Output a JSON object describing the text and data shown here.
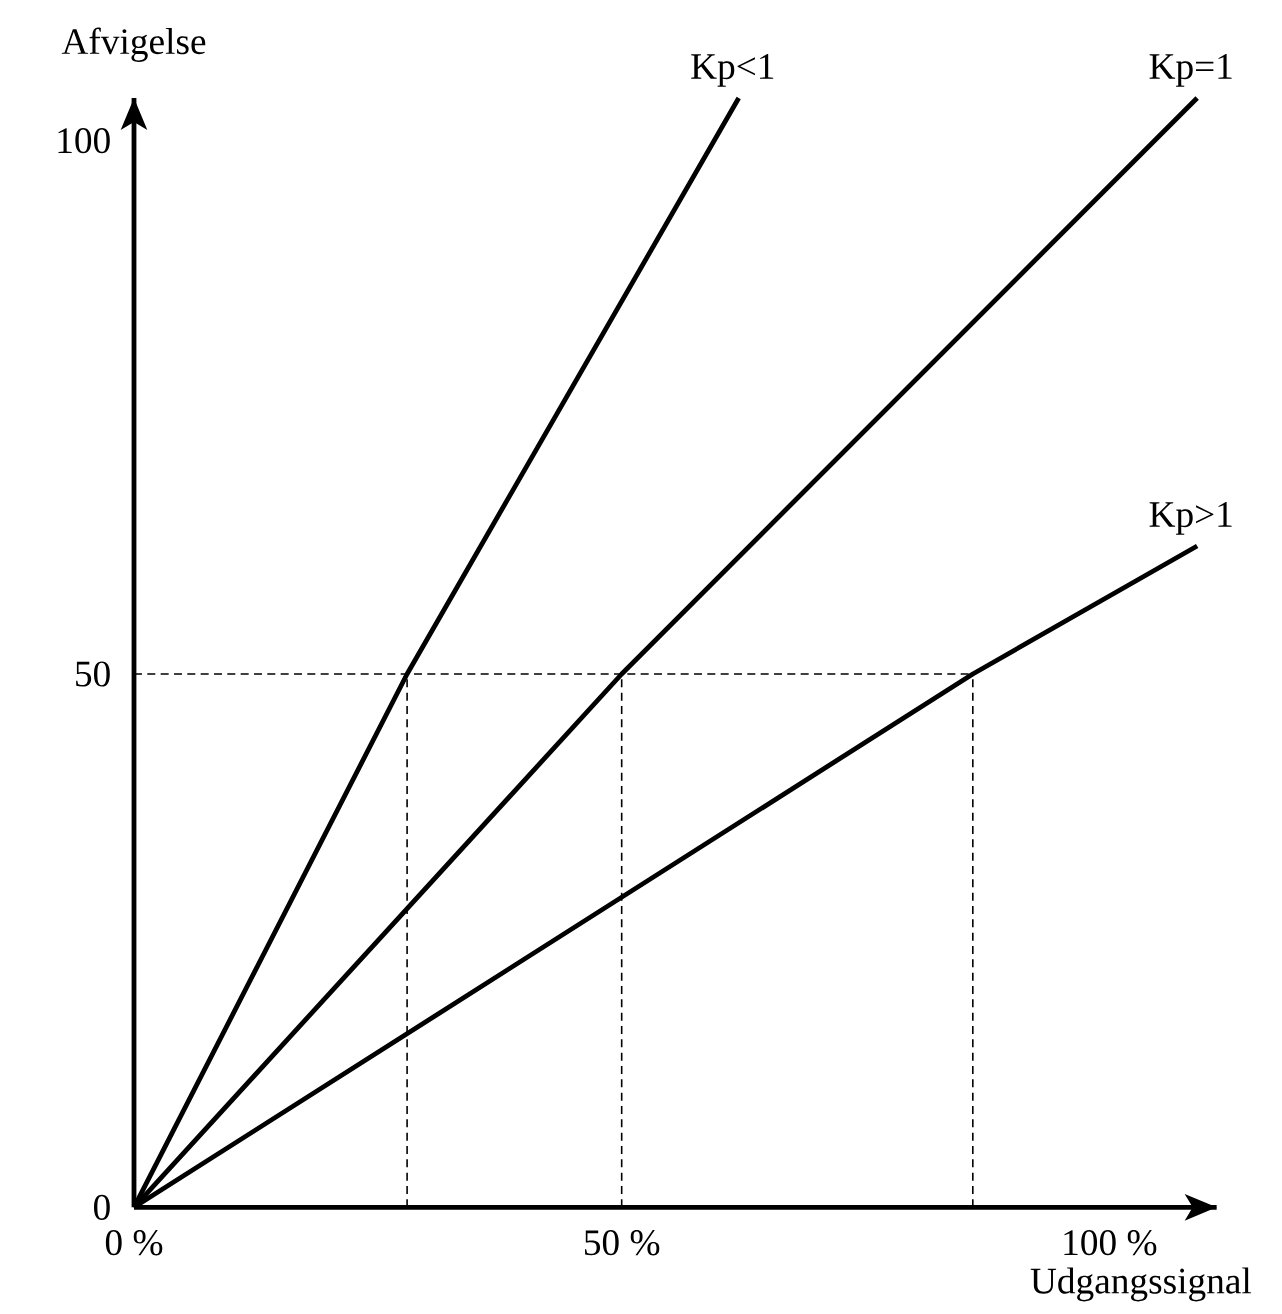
{
  "chart_data": {
    "type": "line",
    "xlabel": "Udgangssignal",
    "ylabel": "Afvigelse",
    "xlim": [
      0,
      111
    ],
    "ylim": [
      0,
      104
    ],
    "xticks": [
      {
        "value": 0,
        "label": "0 %"
      },
      {
        "value": 50,
        "label": "50 %"
      },
      {
        "value": 100,
        "label": "100 %"
      }
    ],
    "yticks": [
      0,
      50,
      100
    ],
    "series": [
      {
        "name": "Kp<1",
        "color": "#000000",
        "x": [
          0,
          28,
          62
        ],
        "values": [
          0,
          50,
          104
        ]
      },
      {
        "name": "Kp=1",
        "color": "#000000",
        "x": [
          0,
          50,
          109
        ],
        "values": [
          0,
          50,
          104
        ]
      },
      {
        "name": "Kp>1",
        "color": "#000000",
        "x": [
          0,
          86,
          109
        ],
        "values": [
          0,
          50,
          62
        ]
      },
      {
        "color": "#000000",
        "line_style": "dashed",
        "x": [
          0,
          86
        ],
        "values": [
          50,
          50
        ]
      },
      {
        "color": "#000000",
        "line_style": "dashed",
        "x": [
          28,
          28
        ],
        "values": [
          0,
          50
        ]
      },
      {
        "color": "#000000",
        "line_style": "dashed",
        "x": [
          50,
          50
        ],
        "values": [
          0,
          50
        ]
      },
      {
        "color": "#000000",
        "line_style": "dashed",
        "x": [
          86,
          86
        ],
        "values": [
          0,
          50
        ]
      }
    ]
  }
}
